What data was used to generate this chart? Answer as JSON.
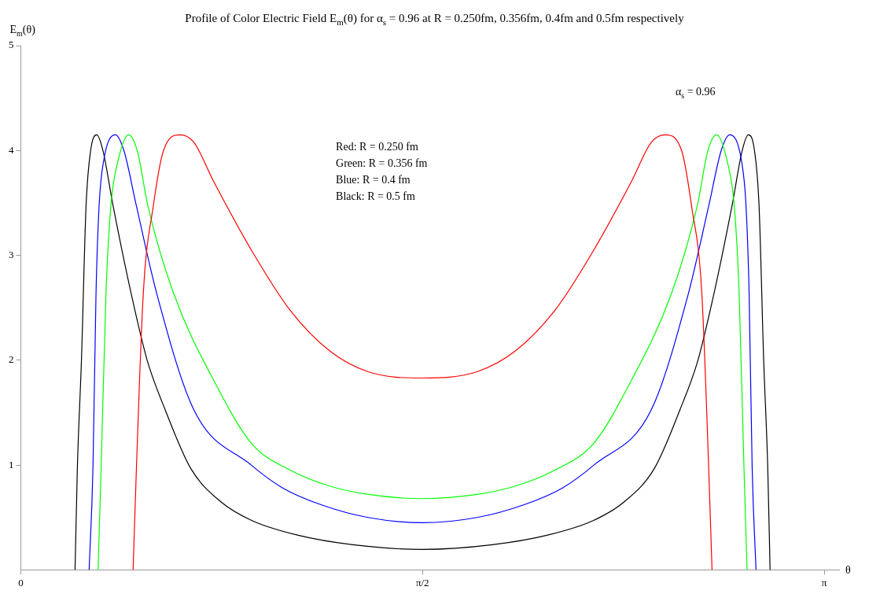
{
  "chart_data": {
    "type": "line",
    "title": "Profile of Color Electric Field E$_{m}$(θ) for α$_{s}$ = 0.96 at R = 0.250fm, 0.356fm, 0.4fm and 0.5fm respectively",
    "xlabel": "θ",
    "ylabel": "E$_{m}$(θ)",
    "xlim": [
      0,
      3.2
    ],
    "xticks": [
      0,
      {
        "value": 1.5708,
        "label": "π/2"
      },
      {
        "value": 3.1416,
        "label": "π"
      }
    ],
    "ylim": [
      0,
      5
    ],
    "yticks": [
      1,
      2,
      3,
      4,
      5
    ],
    "marker": "none",
    "line_style": "solid",
    "legend": false,
    "annotations": [
      "α$_{s}$ = 0.96",
      "Red: R = 0.250 fm",
      "Green: R = 0.356 fm",
      "Blue: R = 0.4 fm",
      "Black: R = 0.5 fm"
    ],
    "series": [
      {
        "color": "#ff0000",
        "x": [
          0.439,
          0.452,
          0.479,
          0.518,
          0.558,
          0.622,
          0.676,
          0.755,
          0.904,
          1.055,
          1.207,
          1.358,
          1.571,
          1.784,
          1.935,
          2.087,
          2.238,
          2.387,
          2.466,
          2.52,
          2.584,
          2.623,
          2.663,
          2.69,
          2.703
        ],
        "values": [
          0,
          0.97,
          2.64,
          3.47,
          4.0,
          4.15,
          4.08,
          3.7,
          3.04,
          2.47,
          2.09,
          1.89,
          1.83,
          1.89,
          2.09,
          2.47,
          3.04,
          3.7,
          4.08,
          4.15,
          4.0,
          3.47,
          2.64,
          0.97,
          0
        ]
      },
      {
        "color": "#00ff00",
        "x": [
          0.302,
          0.314,
          0.333,
          0.352,
          0.379,
          0.421,
          0.455,
          0.497,
          0.597,
          0.767,
          0.904,
          1.055,
          1.207,
          1.358,
          1.571,
          1.784,
          1.935,
          2.087,
          2.238,
          2.375,
          2.545,
          2.645,
          2.687,
          2.721,
          2.763,
          2.79,
          2.809,
          2.828,
          2.84
        ],
        "values": [
          0,
          0.97,
          2.64,
          3.47,
          3.89,
          4.15,
          4.0,
          3.47,
          2.64,
          1.75,
          1.2,
          0.95,
          0.8,
          0.72,
          0.68,
          0.72,
          0.8,
          0.95,
          1.2,
          1.75,
          2.64,
          3.47,
          4.0,
          4.15,
          3.89,
          3.47,
          2.64,
          0.97,
          0
        ]
      },
      {
        "color": "#0000ff",
        "x": [
          0.267,
          0.282,
          0.294,
          0.306,
          0.323,
          0.37,
          0.403,
          0.452,
          0.531,
          0.676,
          0.901,
          1.025,
          1.176,
          1.358,
          1.571,
          1.784,
          1.966,
          2.117,
          2.241,
          2.466,
          2.611,
          2.69,
          2.739,
          2.772,
          2.819,
          2.836,
          2.848,
          2.86,
          2.875
        ],
        "values": [
          0,
          0.97,
          2.64,
          3.47,
          3.89,
          4.15,
          4.0,
          3.47,
          2.64,
          1.53,
          1.0,
          0.78,
          0.62,
          0.5,
          0.45,
          0.5,
          0.62,
          0.78,
          1.0,
          1.53,
          2.64,
          3.47,
          4.0,
          4.15,
          3.89,
          3.47,
          2.64,
          0.97,
          0
        ]
      },
      {
        "color": "#000000",
        "x": [
          0.212,
          0.221,
          0.237,
          0.255,
          0.273,
          0.297,
          0.321,
          0.361,
          0.431,
          0.494,
          0.564,
          0.664,
          0.782,
          0.904,
          1.085,
          1.298,
          1.571,
          1.844,
          2.057,
          2.238,
          2.36,
          2.478,
          2.578,
          2.648,
          2.711,
          2.781,
          2.821,
          2.845,
          2.869,
          2.887,
          2.905,
          2.921,
          2.93
        ],
        "values": [
          0,
          0.97,
          2.0,
          3.47,
          4.0,
          4.15,
          4.0,
          3.47,
          2.64,
          2.0,
          1.53,
          0.97,
          0.65,
          0.47,
          0.33,
          0.24,
          0.195,
          0.24,
          0.33,
          0.47,
          0.65,
          0.97,
          1.53,
          2.0,
          2.64,
          3.47,
          4.0,
          4.15,
          4.0,
          3.47,
          2.0,
          0.97,
          0
        ]
      }
    ]
  }
}
